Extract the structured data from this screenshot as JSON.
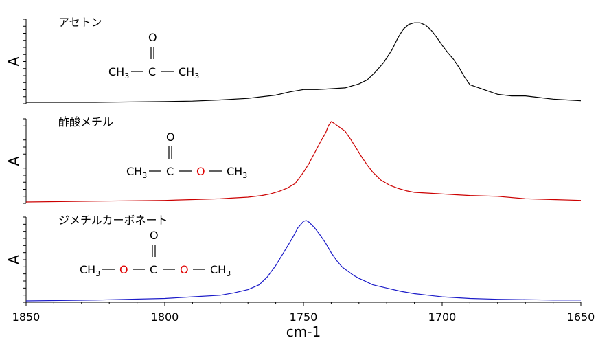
{
  "chart_data": {
    "type": "line",
    "xlabel": "cm-1",
    "xlim": [
      1850,
      1650
    ],
    "x_reversed": true,
    "x_ticks": [
      1850,
      1800,
      1750,
      1700,
      1650
    ],
    "ylabel": "A",
    "panels": [
      {
        "name": "アセトン",
        "color": "#000000",
        "structure": {
          "carbonyl_o": "O",
          "atoms": [
            {
              "text": "CH",
              "sub": "3",
              "color": "#000000"
            },
            {
              "text": "C",
              "sub": "",
              "color": "#000000"
            },
            {
              "text": "CH",
              "sub": "3",
              "color": "#000000"
            }
          ]
        },
        "x": [
          1850,
          1825,
          1800,
          1790,
          1780,
          1770,
          1760,
          1755,
          1750,
          1745,
          1740,
          1735,
          1730,
          1727,
          1724,
          1721,
          1718,
          1716,
          1714,
          1712,
          1710,
          1708,
          1706,
          1704,
          1702,
          1700,
          1698,
          1696,
          1694,
          1692,
          1690,
          1685,
          1680,
          1675,
          1670,
          1665,
          1660,
          1655,
          1650
        ],
        "values": [
          0.0,
          0.0,
          0.01,
          0.015,
          0.03,
          0.05,
          0.09,
          0.13,
          0.16,
          0.16,
          0.17,
          0.18,
          0.23,
          0.28,
          0.38,
          0.5,
          0.66,
          0.8,
          0.91,
          0.97,
          0.99,
          0.99,
          0.96,
          0.9,
          0.81,
          0.71,
          0.62,
          0.54,
          0.44,
          0.32,
          0.22,
          0.16,
          0.1,
          0.08,
          0.08,
          0.06,
          0.04,
          0.03,
          0.02
        ]
      },
      {
        "name": "酢酸メチル",
        "color": "#cc0000",
        "structure": {
          "carbonyl_o": "O",
          "atoms": [
            {
              "text": "CH",
              "sub": "3",
              "color": "#000000"
            },
            {
              "text": "C",
              "sub": "",
              "color": "#000000"
            },
            {
              "text": "O",
              "sub": "",
              "color": "#e00000"
            },
            {
              "text": "CH",
              "sub": "3",
              "color": "#000000"
            }
          ]
        },
        "x": [
          1850,
          1825,
          1800,
          1790,
          1780,
          1775,
          1770,
          1765,
          1762,
          1759,
          1756,
          1753,
          1750,
          1748,
          1746,
          1744,
          1742,
          1741,
          1740,
          1739,
          1737,
          1735,
          1733,
          1731,
          1729,
          1727,
          1725,
          1722,
          1719,
          1716,
          1713,
          1710,
          1705,
          1700,
          1695,
          1690,
          1680,
          1670,
          1660,
          1650
        ],
        "values": [
          0.0,
          0.01,
          0.02,
          0.03,
          0.04,
          0.05,
          0.06,
          0.08,
          0.1,
          0.13,
          0.17,
          0.23,
          0.37,
          0.48,
          0.61,
          0.74,
          0.86,
          0.95,
          1.0,
          0.98,
          0.93,
          0.88,
          0.78,
          0.67,
          0.56,
          0.46,
          0.37,
          0.27,
          0.21,
          0.17,
          0.14,
          0.12,
          0.11,
          0.1,
          0.09,
          0.08,
          0.07,
          0.04,
          0.03,
          0.02
        ]
      },
      {
        "name": "ジメチルカーボネート",
        "color": "#1a1ac8",
        "structure": {
          "carbonyl_o": "O",
          "atoms": [
            {
              "text": "CH",
              "sub": "3",
              "color": "#000000"
            },
            {
              "text": "O",
              "sub": "",
              "color": "#e00000"
            },
            {
              "text": "C",
              "sub": "",
              "color": "#000000"
            },
            {
              "text": "O",
              "sub": "",
              "color": "#e00000"
            },
            {
              "text": "CH",
              "sub": "3",
              "color": "#000000"
            }
          ]
        },
        "x": [
          1850,
          1825,
          1800,
          1790,
          1780,
          1775,
          1770,
          1766,
          1763,
          1760,
          1757,
          1754,
          1752,
          1750,
          1749,
          1748,
          1746,
          1744,
          1742,
          1740,
          1738,
          1736,
          1734,
          1732,
          1730,
          1728,
          1725,
          1720,
          1715,
          1710,
          1705,
          1700,
          1690,
          1680,
          1670,
          1660,
          1650
        ],
        "values": [
          0.0,
          0.01,
          0.03,
          0.05,
          0.07,
          0.1,
          0.14,
          0.2,
          0.3,
          0.44,
          0.61,
          0.78,
          0.91,
          0.99,
          1.0,
          0.98,
          0.91,
          0.82,
          0.72,
          0.6,
          0.5,
          0.42,
          0.37,
          0.32,
          0.28,
          0.25,
          0.2,
          0.16,
          0.12,
          0.09,
          0.07,
          0.05,
          0.03,
          0.02,
          0.015,
          0.01,
          0.01
        ]
      }
    ]
  }
}
